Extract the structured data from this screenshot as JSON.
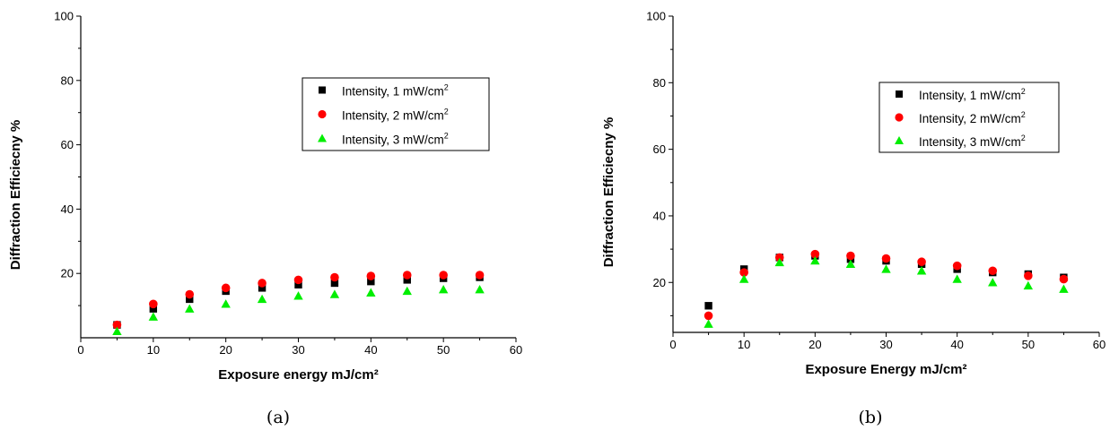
{
  "chart_data": [
    {
      "type": "scatter",
      "panel_label": "(a)",
      "xlabel": "Exposure energy mJ/cm²",
      "ylabel": "Diffraction Efficiecny %",
      "xlim": [
        0,
        60
      ],
      "ylim": [
        0,
        100
      ],
      "x_ticks": [
        "0",
        "10",
        "20",
        "30",
        "40",
        "50",
        "60"
      ],
      "y_ticks": [
        "20",
        "40",
        "60",
        "80",
        "100"
      ],
      "legend_position": "upper-right",
      "grid": false,
      "x": [
        5,
        10,
        15,
        20,
        25,
        30,
        35,
        40,
        45,
        50,
        55
      ],
      "series": [
        {
          "name": "Intensity, 1 mW/cm",
          "superscript": "2",
          "marker": "square",
          "color": "#000000",
          "values": [
            4.0,
            9.0,
            12.0,
            14.5,
            15.5,
            16.5,
            17.0,
            17.5,
            18.0,
            18.5,
            18.8
          ]
        },
        {
          "name": "Intensity, 2 mW/cm",
          "superscript": "2",
          "marker": "circle",
          "color": "#ff0000",
          "values": [
            4.0,
            10.5,
            13.5,
            15.5,
            17.0,
            18.0,
            18.8,
            19.2,
            19.5,
            19.5,
            19.5
          ]
        },
        {
          "name": "Intensity, 3 mW/cm",
          "superscript": "2",
          "marker": "triangle",
          "color": "#00ee00",
          "values": [
            2.0,
            6.5,
            9.0,
            10.5,
            12.0,
            13.0,
            13.5,
            14.0,
            14.5,
            15.0,
            15.0
          ]
        }
      ]
    },
    {
      "type": "scatter",
      "panel_label": "(b)",
      "xlabel": "Exposure Energy mJ/cm²",
      "ylabel": "Diffraction Efficiecny %",
      "xlim": [
        0,
        60
      ],
      "ylim": [
        0,
        100
      ],
      "x_ticks": [
        "0",
        "10",
        "20",
        "30",
        "40",
        "50",
        "60"
      ],
      "y_ticks": [
        "20",
        "40",
        "60",
        "80",
        "100"
      ],
      "legend_position": "upper-right",
      "grid": false,
      "x": [
        5,
        10,
        15,
        20,
        25,
        30,
        35,
        40,
        45,
        50,
        55
      ],
      "series": [
        {
          "name": "Intensity, 1 mW/cm",
          "superscript": "2",
          "marker": "square",
          "color": "#000000",
          "values": [
            13.0,
            24.0,
            27.5,
            28.0,
            27.0,
            26.5,
            25.5,
            24.0,
            23.0,
            22.5,
            21.5
          ]
        },
        {
          "name": "Intensity, 2 mW/cm",
          "superscript": "2",
          "marker": "circle",
          "color": "#ff0000",
          "values": [
            10.0,
            23.0,
            27.5,
            28.5,
            28.0,
            27.2,
            26.2,
            25.0,
            23.5,
            22.0,
            21.0
          ]
        },
        {
          "name": "Intensity, 3 mW/cm",
          "superscript": "2",
          "marker": "triangle",
          "color": "#00ee00",
          "values": [
            7.5,
            21.0,
            26.0,
            26.5,
            25.5,
            24.0,
            23.5,
            21.0,
            20.0,
            19.0,
            18.0
          ]
        }
      ]
    }
  ]
}
